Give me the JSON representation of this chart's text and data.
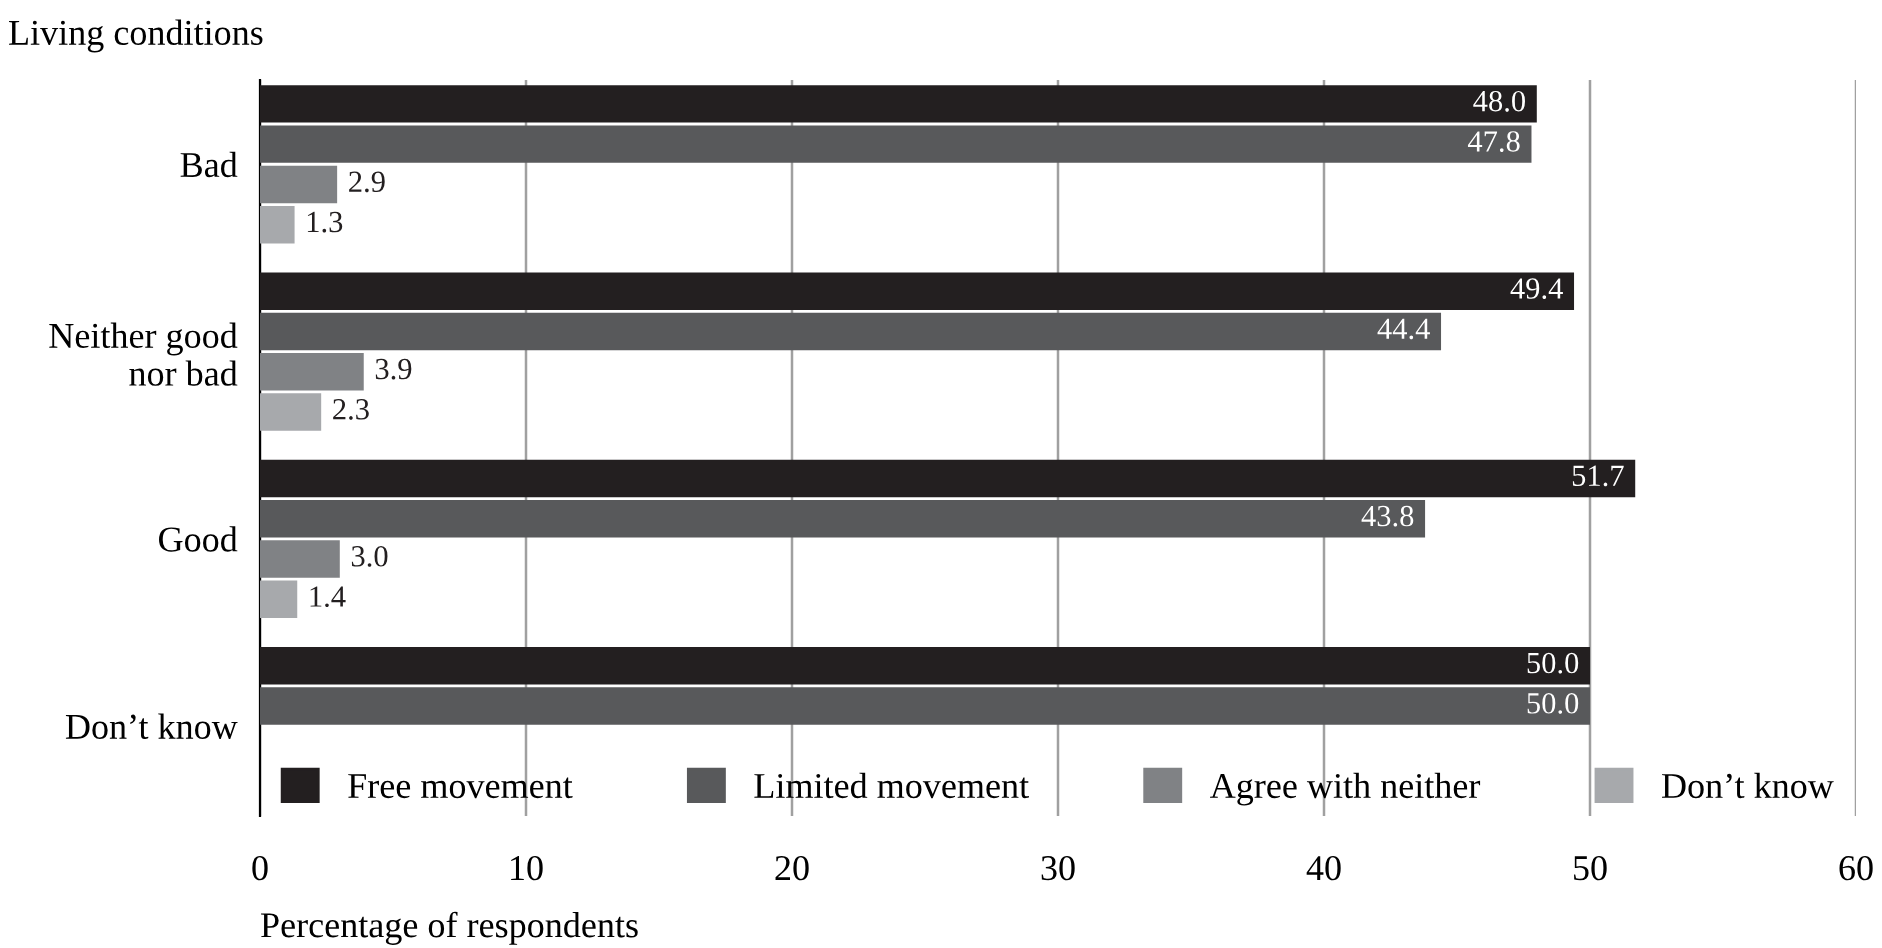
{
  "chart_data": {
    "type": "bar",
    "orientation": "horizontal",
    "ylabel": "Living conditions",
    "xlabel": "Percentage of respondents",
    "categories": [
      "Bad",
      "Neither good\nnor bad",
      "Good",
      "Don’t know"
    ],
    "series": [
      {
        "name": "Free movement",
        "color": "#231f20",
        "values": [
          48.0,
          49.4,
          51.7,
          50.0
        ],
        "value_labels": [
          "48.0",
          "49.4",
          "51.7",
          "50.0"
        ]
      },
      {
        "name": "Limited movement",
        "color": "#58595b",
        "values": [
          47.8,
          44.4,
          43.8,
          50.0
        ],
        "value_labels": [
          "47.8",
          "44.4",
          "43.8",
          "50.0"
        ]
      },
      {
        "name": "Agree with neither",
        "color": "#808285",
        "values": [
          2.9,
          3.9,
          3.0,
          null
        ],
        "value_labels": [
          "2.9",
          "3.9",
          "3.0",
          null
        ]
      },
      {
        "name": "Don’t know",
        "color": "#a7a9ac",
        "values": [
          1.3,
          2.3,
          1.4,
          null
        ],
        "value_labels": [
          "1.3",
          "2.3",
          "1.4",
          null
        ]
      }
    ],
    "xlim": [
      0,
      60
    ],
    "xticks": [
      0,
      10,
      20,
      30,
      40,
      50,
      60
    ],
    "grid": "x",
    "legend": "bottom"
  }
}
